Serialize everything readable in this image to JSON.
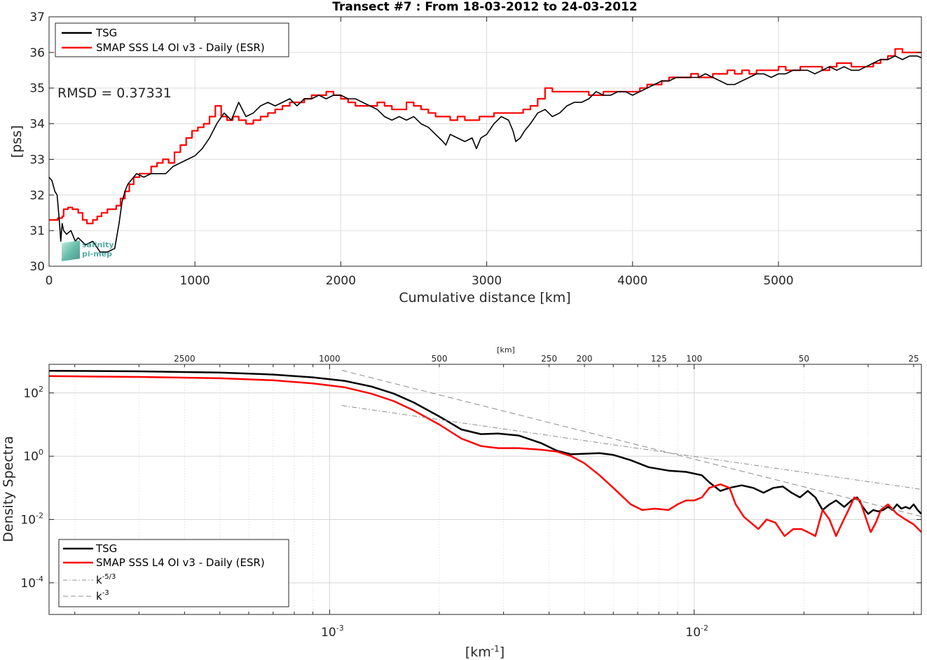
{
  "chart_data": [
    {
      "type": "line",
      "title": "Transect #7 : From 18-03-2012 to 24-03-2012",
      "xlabel": "Cumulative distance [km]",
      "ylabel": "[pss]",
      "xlim": [
        0,
        5980
      ],
      "ylim": [
        30,
        37
      ],
      "xticks": [
        "0",
        "1000",
        "2000",
        "3000",
        "4000",
        "5000"
      ],
      "yticks": [
        "30",
        "31",
        "32",
        "33",
        "34",
        "35",
        "36",
        "37"
      ],
      "grid": true,
      "legend_location": "top-left",
      "annotation": "RMSD = 0.37331",
      "logo_text": [
        "salinity",
        "pi-mep"
      ],
      "series": [
        {
          "name": "TSG",
          "color": "#000000",
          "x": [
            0,
            20,
            40,
            55,
            70,
            80,
            90,
            100,
            120,
            150,
            180,
            200,
            250,
            300,
            350,
            400,
            450,
            480,
            500,
            520,
            540,
            560,
            600,
            650,
            700,
            800,
            850,
            900,
            950,
            1000,
            1050,
            1100,
            1150,
            1200,
            1250,
            1300,
            1350,
            1400,
            1450,
            1500,
            1550,
            1600,
            1650,
            1700,
            1750,
            1800,
            1850,
            1900,
            1950,
            2000,
            2050,
            2100,
            2150,
            2200,
            2250,
            2300,
            2350,
            2400,
            2450,
            2500,
            2550,
            2600,
            2650,
            2700,
            2720,
            2750,
            2800,
            2850,
            2900,
            2930,
            2960,
            3000,
            3050,
            3100,
            3150,
            3180,
            3200,
            3230,
            3260,
            3300,
            3350,
            3400,
            3450,
            3500,
            3550,
            3600,
            3650,
            3700,
            3750,
            3800,
            3850,
            3900,
            3950,
            4000,
            4050,
            4100,
            4150,
            4200,
            4250,
            4300,
            4350,
            4400,
            4450,
            4500,
            4550,
            4600,
            4650,
            4700,
            4750,
            4800,
            4850,
            4900,
            4950,
            5000,
            5050,
            5100,
            5150,
            5200,
            5250,
            5300,
            5350,
            5400,
            5450,
            5500,
            5550,
            5600,
            5650,
            5700,
            5750,
            5800,
            5850,
            5900,
            5950,
            5980
          ],
          "y": [
            32.5,
            32.4,
            32.1,
            32.0,
            31.3,
            30.7,
            31.2,
            31.0,
            30.9,
            31.0,
            30.7,
            30.8,
            30.6,
            30.7,
            30.4,
            30.4,
            30.5,
            31.2,
            31.8,
            32.1,
            32.3,
            32.4,
            32.6,
            32.5,
            32.6,
            32.6,
            32.8,
            32.9,
            33.0,
            33.1,
            33.3,
            33.6,
            34.0,
            34.3,
            34.1,
            34.6,
            34.2,
            34.3,
            34.5,
            34.6,
            34.5,
            34.6,
            34.7,
            34.5,
            34.7,
            34.7,
            34.8,
            34.7,
            34.8,
            34.8,
            34.7,
            34.7,
            34.6,
            34.5,
            34.4,
            34.2,
            34.1,
            34.2,
            34.1,
            34.2,
            34.0,
            33.9,
            33.7,
            33.5,
            33.4,
            33.7,
            33.6,
            33.5,
            33.6,
            33.3,
            33.6,
            33.7,
            34.0,
            34.2,
            34.1,
            33.8,
            33.5,
            33.6,
            33.8,
            34.0,
            34.3,
            34.4,
            34.2,
            34.3,
            34.5,
            34.6,
            34.6,
            34.7,
            34.9,
            34.8,
            34.8,
            34.9,
            34.9,
            34.8,
            34.9,
            35.0,
            35.1,
            35.2,
            35.2,
            35.3,
            35.3,
            35.3,
            35.3,
            35.4,
            35.3,
            35.2,
            35.1,
            35.1,
            35.2,
            35.3,
            35.4,
            35.4,
            35.3,
            35.4,
            35.4,
            35.5,
            35.5,
            35.5,
            35.4,
            35.5,
            35.6,
            35.5,
            35.6,
            35.5,
            35.5,
            35.6,
            35.7,
            35.8,
            35.8,
            35.9,
            35.8,
            35.9,
            35.9,
            35.85
          ]
        },
        {
          "name": "SMAP SSS L4 OI v3 - Daily (ESR)",
          "color": "#ff0000",
          "x": [
            0,
            30,
            60,
            90,
            100,
            130,
            160,
            200,
            230,
            260,
            300,
            330,
            360,
            400,
            430,
            460,
            490,
            520,
            550,
            580,
            620,
            660,
            700,
            740,
            780,
            820,
            860,
            900,
            940,
            980,
            1020,
            1060,
            1100,
            1140,
            1180,
            1220,
            1260,
            1300,
            1350,
            1400,
            1450,
            1500,
            1550,
            1600,
            1650,
            1700,
            1750,
            1800,
            1850,
            1900,
            1950,
            2000,
            2050,
            2100,
            2150,
            2200,
            2250,
            2300,
            2350,
            2400,
            2450,
            2500,
            2550,
            2600,
            2650,
            2700,
            2750,
            2800,
            2850,
            2900,
            2950,
            3000,
            3050,
            3100,
            3150,
            3200,
            3250,
            3300,
            3350,
            3400,
            3450,
            3500,
            3550,
            3600,
            3650,
            3700,
            3750,
            3800,
            3850,
            3900,
            3950,
            4000,
            4050,
            4100,
            4150,
            4200,
            4250,
            4300,
            4350,
            4400,
            4450,
            4500,
            4550,
            4600,
            4650,
            4700,
            4750,
            4800,
            4850,
            4900,
            4950,
            5000,
            5050,
            5100,
            5150,
            5200,
            5250,
            5300,
            5350,
            5400,
            5450,
            5500,
            5550,
            5600,
            5650,
            5700,
            5750,
            5800,
            5850,
            5900,
            5950,
            5980
          ],
          "y": [
            31.3,
            31.3,
            31.35,
            31.4,
            31.6,
            31.65,
            31.6,
            31.5,
            31.3,
            31.2,
            31.3,
            31.4,
            31.5,
            31.6,
            31.6,
            31.7,
            31.9,
            32.1,
            32.3,
            32.5,
            32.6,
            32.6,
            32.8,
            32.9,
            33.0,
            32.9,
            33.2,
            33.4,
            33.6,
            33.8,
            33.9,
            34.0,
            34.2,
            34.5,
            34.2,
            34.1,
            34.2,
            34.1,
            34.0,
            34.1,
            34.2,
            34.3,
            34.4,
            34.5,
            34.6,
            34.6,
            34.7,
            34.8,
            34.8,
            34.9,
            34.8,
            34.7,
            34.6,
            34.5,
            34.5,
            34.5,
            34.6,
            34.5,
            34.4,
            34.4,
            34.6,
            34.5,
            34.4,
            34.3,
            34.2,
            34.2,
            34.1,
            34.2,
            34.1,
            34.1,
            34.2,
            34.2,
            34.3,
            34.3,
            34.3,
            34.3,
            34.4,
            34.5,
            34.7,
            35.0,
            34.9,
            34.9,
            34.9,
            34.9,
            34.9,
            34.8,
            34.8,
            34.9,
            34.9,
            34.9,
            34.9,
            34.9,
            35.0,
            35.1,
            35.1,
            35.2,
            35.3,
            35.3,
            35.3,
            35.4,
            35.3,
            35.3,
            35.4,
            35.4,
            35.5,
            35.4,
            35.5,
            35.4,
            35.5,
            35.5,
            35.5,
            35.6,
            35.5,
            35.5,
            35.6,
            35.6,
            35.6,
            35.5,
            35.6,
            35.7,
            35.7,
            35.6,
            35.6,
            35.6,
            35.7,
            35.8,
            35.9,
            36.1,
            36.0,
            36.0,
            36.0,
            36.0
          ]
        }
      ]
    },
    {
      "type": "line",
      "xscale": "log",
      "yscale": "log",
      "xlabel": "[km⁻¹]",
      "ylabel": "Density Spectra",
      "xlim": [
        0.00017,
        0.042
      ],
      "ylim": [
        1e-05,
        800
      ],
      "xticks": [
        {
          "base": "10",
          "exp": "-3"
        },
        {
          "base": "10",
          "exp": "-2"
        }
      ],
      "yticks": [
        {
          "base": "10",
          "exp": "2"
        },
        {
          "base": "10",
          "exp": "0"
        },
        {
          "base": "10",
          "exp": "-2"
        },
        {
          "base": "10",
          "exp": "-4"
        }
      ],
      "top_axis_label": "[km]",
      "top_ticks": [
        "2500",
        "1000",
        "500",
        "250",
        "200",
        "125",
        "100",
        "50",
        "25"
      ],
      "grid": true,
      "legend_location": "bottom-left",
      "series": [
        {
          "name": "TSG",
          "color": "#000000",
          "x": [
            0.00017,
            0.0003,
            0.0005,
            0.0007,
            0.0009,
            0.0011,
            0.0013,
            0.0015,
            0.0017,
            0.002,
            0.0023,
            0.0026,
            0.0029,
            0.0033,
            0.0038,
            0.0042,
            0.0046,
            0.005,
            0.0055,
            0.006,
            0.0067,
            0.0075,
            0.0085,
            0.0095,
            0.0105,
            0.011,
            0.0118,
            0.0125,
            0.0135,
            0.0145,
            0.0155,
            0.0165,
            0.0175,
            0.0185,
            0.0195,
            0.0205,
            0.0215,
            0.0225,
            0.0235,
            0.0245,
            0.0258,
            0.027,
            0.028,
            0.029,
            0.03,
            0.031,
            0.032,
            0.033,
            0.034,
            0.035,
            0.036,
            0.037,
            0.038,
            0.039,
            0.04,
            0.041,
            0.042
          ],
          "y": [
            500,
            480,
            440,
            380,
            310,
            240,
            160,
            95,
            50,
            18,
            7,
            5,
            5.2,
            4.5,
            2.6,
            1.5,
            1.15,
            1.2,
            1.25,
            1.1,
            0.75,
            0.45,
            0.35,
            0.32,
            0.25,
            0.15,
            0.08,
            0.1,
            0.12,
            0.1,
            0.07,
            0.1,
            0.11,
            0.07,
            0.05,
            0.08,
            0.05,
            0.02,
            0.03,
            0.04,
            0.025,
            0.04,
            0.05,
            0.025,
            0.015,
            0.02,
            0.018,
            0.02,
            0.025,
            0.02,
            0.03,
            0.022,
            0.025,
            0.022,
            0.03,
            0.02,
            0.015
          ]
        },
        {
          "name": "SMAP SSS L4 OI v3 - Daily (ESR)",
          "color": "#ff0000",
          "x": [
            0.00017,
            0.0003,
            0.0005,
            0.0007,
            0.0009,
            0.0011,
            0.0013,
            0.0015,
            0.0017,
            0.002,
            0.0023,
            0.0026,
            0.0029,
            0.0033,
            0.0038,
            0.0042,
            0.0046,
            0.005,
            0.0055,
            0.006,
            0.0067,
            0.0072,
            0.0078,
            0.0085,
            0.009,
            0.0095,
            0.01,
            0.0105,
            0.011,
            0.0118,
            0.0125,
            0.013,
            0.0137,
            0.0143,
            0.015,
            0.0158,
            0.0167,
            0.0177,
            0.0187,
            0.0197,
            0.0205,
            0.0215,
            0.0225,
            0.0235,
            0.0245,
            0.0255,
            0.0265,
            0.0275,
            0.0285,
            0.0295,
            0.0305,
            0.0315,
            0.0325,
            0.034,
            0.036,
            0.038,
            0.04,
            0.042
          ],
          "y": [
            340,
            320,
            290,
            250,
            200,
            150,
            95,
            55,
            28,
            10,
            3.6,
            2.1,
            1.8,
            1.8,
            1.6,
            1.4,
            1.0,
            0.6,
            0.25,
            0.1,
            0.03,
            0.02,
            0.022,
            0.02,
            0.03,
            0.04,
            0.04,
            0.05,
            0.1,
            0.13,
            0.1,
            0.03,
            0.012,
            0.008,
            0.005,
            0.01,
            0.008,
            0.003,
            0.005,
            0.005,
            0.004,
            0.003,
            0.02,
            0.01,
            0.003,
            0.008,
            0.02,
            0.05,
            0.04,
            0.012,
            0.004,
            0.008,
            0.02,
            0.03,
            0.015,
            0.01,
            0.007,
            0.004
          ]
        },
        {
          "name": "k-5/3",
          "color": "#8c8c8c",
          "dash": "dashdot",
          "x": [
            0.00108,
            0.042
          ],
          "y": [
            40,
            0.09
          ]
        },
        {
          "name": "k-3",
          "color": "#8c8c8c",
          "dash": "dash",
          "x": [
            0.00108,
            0.042
          ],
          "y": [
            520,
            0.0125
          ]
        }
      ],
      "legend_entries": [
        {
          "name": "TSG"
        },
        {
          "name": "SMAP SSS L4 OI v3 - Daily (ESR)"
        },
        {
          "base": "k",
          "exp": "-5/3"
        },
        {
          "base": "k",
          "exp": "-3"
        }
      ]
    }
  ]
}
